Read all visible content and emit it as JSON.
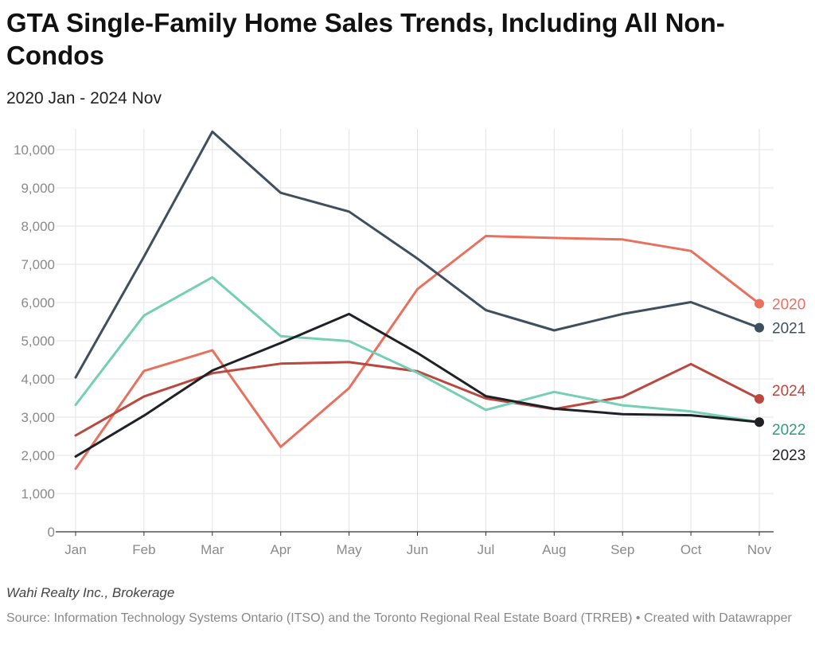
{
  "header": {
    "title": "GTA Single-Family Home Sales Trends, Including All Non-Condos",
    "subtitle": "2020 Jan - 2024 Nov"
  },
  "footer": {
    "byline": "Wahi Realty Inc., Brokerage",
    "source": "Source: Information Technology Systems Ontario (ITSO) and the Toronto Regional Real Estate Board (TRREB) • Created with Datawrapper"
  },
  "chart_data": {
    "type": "line",
    "title": "GTA Single-Family Home Sales Trends, Including All Non-Condos",
    "subtitle": "2020 Jan - 2024 Nov",
    "xlabel": "",
    "ylabel": "",
    "categories": [
      "Jan",
      "Feb",
      "Mar",
      "Apr",
      "May",
      "Jun",
      "Jul",
      "Aug",
      "Sep",
      "Oct",
      "Nov"
    ],
    "ylim": [
      0,
      10500
    ],
    "yticks": [
      0,
      1000,
      2000,
      3000,
      4000,
      5000,
      6000,
      7000,
      8000,
      9000,
      10000
    ],
    "ytick_labels": [
      "0",
      "1,000",
      "2,000",
      "3,000",
      "4,000",
      "5,000",
      "6,000",
      "7,000",
      "8,000",
      "9,000",
      "10,000"
    ],
    "grid": "vertical and horizontal",
    "legend": "direct labels at line ends",
    "series": [
      {
        "name": "2020",
        "color": "#e8705f",
        "values": [
          1650,
          4210,
          4750,
          2220,
          3760,
          6350,
          7740,
          7690,
          7650,
          7350,
          5970
        ],
        "end_dot": true
      },
      {
        "name": "2021",
        "color": "#3f4f5e",
        "values": [
          4040,
          7200,
          10470,
          8870,
          8380,
          7150,
          5800,
          5270,
          5700,
          6010,
          5340
        ],
        "end_dot": true
      },
      {
        "name": "2024",
        "color": "#b9483f",
        "values": [
          2520,
          3540,
          4150,
          4400,
          4440,
          4200,
          3490,
          3210,
          3530,
          4390,
          3480
        ],
        "end_dot": true
      },
      {
        "name": "2022",
        "color": "#74cfb4",
        "values": [
          3320,
          5660,
          6660,
          5120,
          4990,
          4160,
          3190,
          3660,
          3310,
          3150,
          2870
        ],
        "end_dot": false
      },
      {
        "name": "2023",
        "color": "#1e2125",
        "values": [
          1970,
          3040,
          4220,
          4940,
          5700,
          4680,
          3550,
          3220,
          3080,
          3050,
          2870
        ],
        "end_dot": true
      }
    ],
    "label_colors": {
      "2020": "#e8705f",
      "2021": "#3f4f5e",
      "2024": "#b9483f",
      "2022": "#2a9d80",
      "2023": "#1e2125"
    }
  }
}
